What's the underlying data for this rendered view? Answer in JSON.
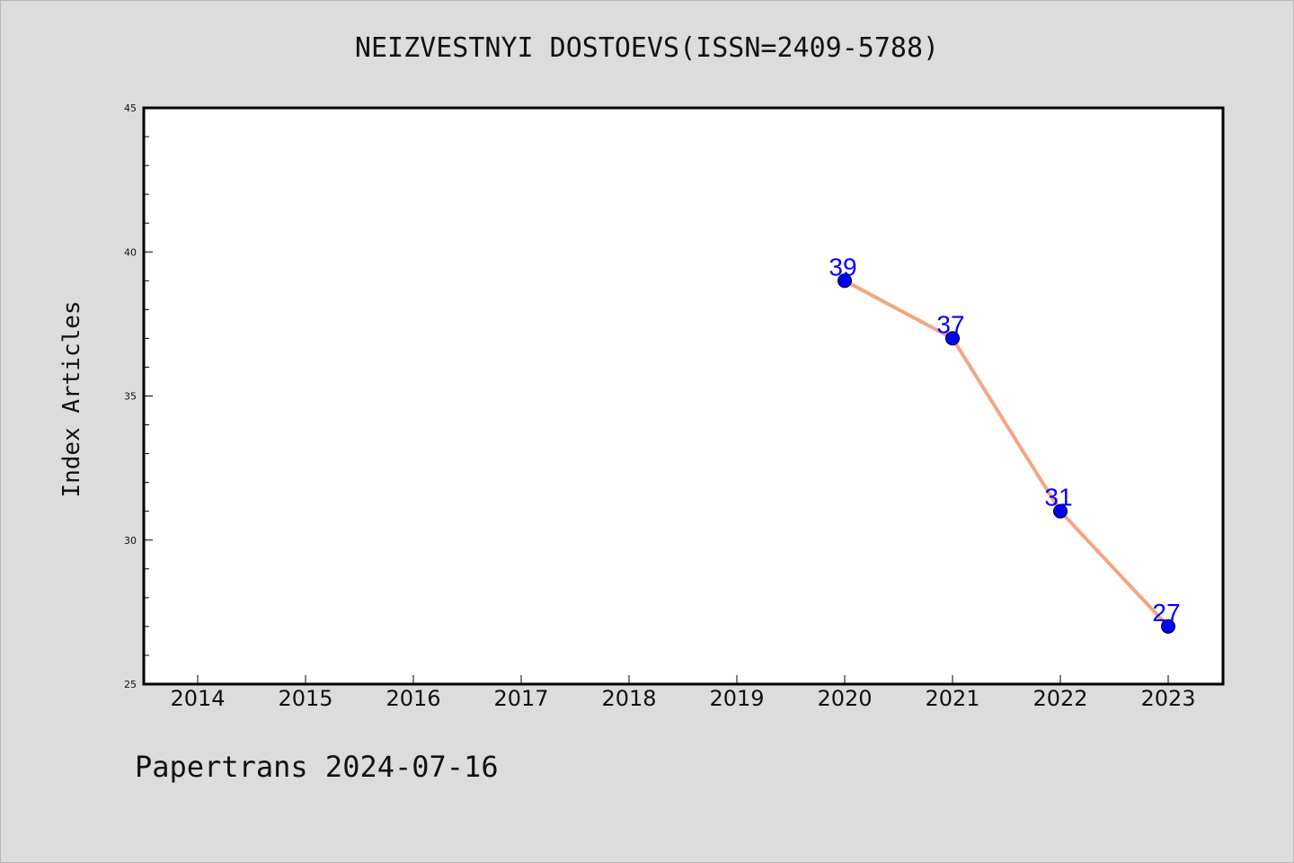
{
  "chart_data": {
    "type": "line",
    "title": "NEIZVESTNYI DOSTOEVS(ISSN=2409-5788)",
    "xlabel": "",
    "ylabel": "Index Articles",
    "x_categories": [
      "2014",
      "2015",
      "2016",
      "2017",
      "2018",
      "2019",
      "2020",
      "2021",
      "2022",
      "2023"
    ],
    "ylim": [
      25,
      45
    ],
    "y_major_ticks": [
      25,
      30,
      35,
      40,
      45
    ],
    "y_minor_step": 1,
    "grid": false,
    "series": [
      {
        "x": [
          "2020",
          "2021",
          "2022",
          "2023"
        ],
        "values": [
          39,
          37,
          31,
          27
        ],
        "line_color": "#f4a582",
        "marker_color": "#0000ff",
        "label_color": "#0000ff"
      }
    ]
  },
  "footer": "Papertrans 2024-07-16"
}
